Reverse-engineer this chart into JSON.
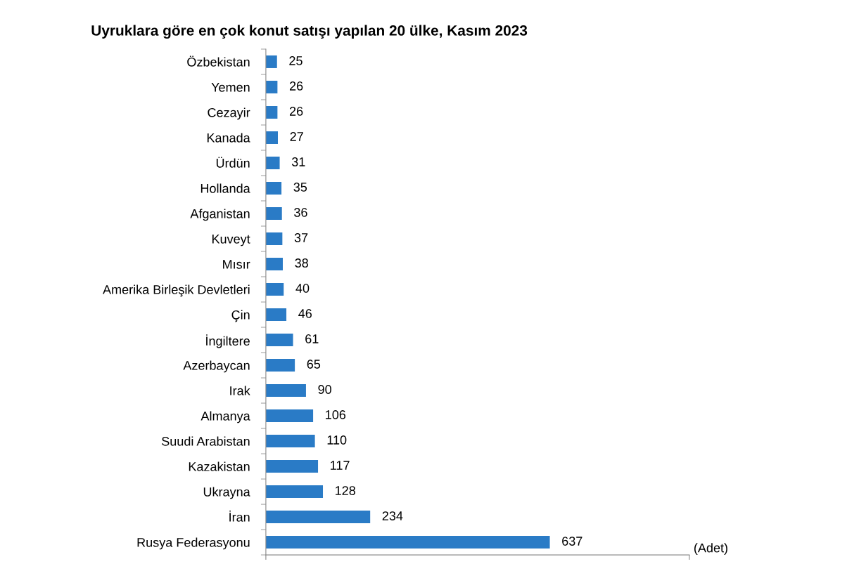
{
  "chart_data": {
    "type": "bar",
    "orientation": "horizontal",
    "title": "Uyruklara göre en çok konut satışı yapılan 20 ülke, Kasım 2023",
    "xlabel": "(Adet)",
    "categories": [
      "Özbekistan",
      "Yemen",
      "Cezayir",
      "Kanada",
      "Ürdün",
      "Hollanda",
      "Afganistan",
      "Kuveyt",
      "Mısır",
      "Amerika Birleşik Devletleri",
      "Çin",
      "İngiltere",
      "Azerbaycan",
      "Irak",
      "Almanya",
      "Suudi Arabistan",
      "Kazakistan",
      "Ukrayna",
      "İran",
      "Rusya Federasyonu"
    ],
    "values": [
      25,
      26,
      26,
      27,
      31,
      35,
      36,
      37,
      38,
      40,
      46,
      61,
      65,
      90,
      106,
      110,
      117,
      128,
      234,
      637
    ],
    "color": "#2a7bc6",
    "data_labels": true,
    "grid": false,
    "tick_labels": "y",
    "xlim": [
      0,
      950
    ],
    "xticks": [
      {
        "value": 0,
        "label": null
      },
      {
        "value": 950,
        "label": null
      }
    ]
  }
}
